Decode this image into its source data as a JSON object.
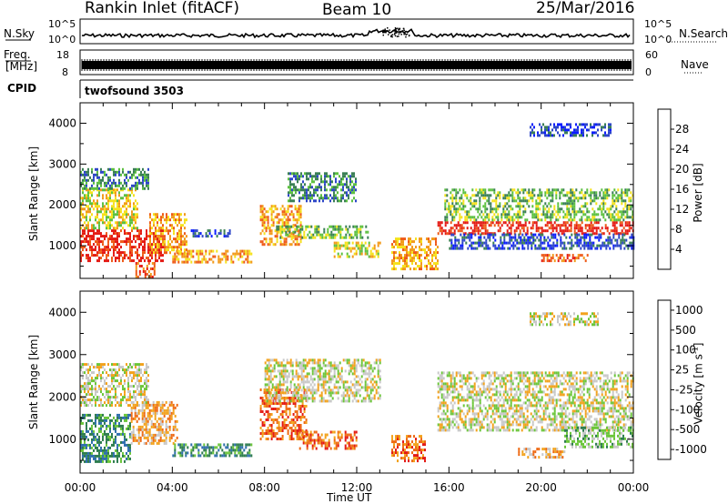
{
  "header": {
    "title": "Rankin Inlet (fitACF)",
    "beam": "Beam 10",
    "date": "25/Mar/2016"
  },
  "panels": {
    "nsky": {
      "label": "N.Sky",
      "tick_top": "10^5",
      "tick_bottom": "10^0",
      "right_label": "N.Search",
      "right_tick_top": "10^5",
      "right_tick_bottom": "10^0"
    },
    "freq": {
      "label_line1": "Freq.",
      "label_line2": "[MHz]",
      "tick_top": "18",
      "tick_bottom": "8",
      "right_label": "Nave",
      "right_tick_top": "60",
      "right_tick_bottom": "0"
    },
    "cpid": {
      "label": "CPID",
      "program": "twofsound 3503"
    }
  },
  "chart_data": [
    {
      "type": "heatmap",
      "name": "power",
      "ylabel": "Slant Range [km]",
      "xlabel": "Time UT",
      "x_ticks": [
        "00:00",
        "04:00",
        "08:00",
        "12:00",
        "16:00",
        "20:00",
        "00:00"
      ],
      "xlim": [
        0,
        24
      ],
      "y_ticks": [
        "1000",
        "2000",
        "3000",
        "4000"
      ],
      "y_tick_values": [
        1000,
        2000,
        3000,
        4000
      ],
      "ylim": [
        200,
        4500
      ],
      "colorbar": {
        "label": "Power [dB]",
        "ticks": [
          "4",
          "8",
          "12",
          "16",
          "20",
          "24",
          "28"
        ],
        "colors": [
          "#0a1cff",
          "#2d46c8",
          "#3a7f55",
          "#5cc040",
          "#f5e21c",
          "#f29a1a",
          "#ee5a18",
          "#e41a14"
        ]
      },
      "echo_regions": [
        {
          "t0": 0.0,
          "t1": 3.6,
          "r0": 600,
          "r1": 1400,
          "level": 7
        },
        {
          "t0": 0.0,
          "t1": 2.5,
          "r0": 1400,
          "r1": 2400,
          "level": 4
        },
        {
          "t0": 0.0,
          "t1": 3.0,
          "r0": 2400,
          "r1": 2900,
          "level": 2
        },
        {
          "t0": 3.0,
          "t1": 4.6,
          "r0": 800,
          "r1": 1800,
          "level": 5
        },
        {
          "t0": 2.4,
          "t1": 3.2,
          "r0": 200,
          "r1": 600,
          "level": 6
        },
        {
          "t0": 4.0,
          "t1": 7.4,
          "r0": 600,
          "r1": 900,
          "level": 5
        },
        {
          "t0": 4.8,
          "t1": 6.5,
          "r0": 1200,
          "r1": 1400,
          "level": 1
        },
        {
          "t0": 7.8,
          "t1": 9.6,
          "r0": 1000,
          "r1": 2000,
          "level": 5
        },
        {
          "t0": 8.5,
          "t1": 12.5,
          "r0": 1200,
          "r1": 1500,
          "level": 3
        },
        {
          "t0": 9.0,
          "t1": 12.0,
          "r0": 2100,
          "r1": 2800,
          "level": 2
        },
        {
          "t0": 11.0,
          "t1": 13.0,
          "r0": 700,
          "r1": 1100,
          "level": 4
        },
        {
          "t0": 13.5,
          "t1": 15.5,
          "r0": 400,
          "r1": 1200,
          "level": 5
        },
        {
          "t0": 15.5,
          "t1": 24.0,
          "r0": 1300,
          "r1": 1600,
          "level": 7
        },
        {
          "t0": 15.8,
          "t1": 24.0,
          "r0": 1600,
          "r1": 2400,
          "level": 3
        },
        {
          "t0": 16.0,
          "t1": 24.0,
          "r0": 900,
          "r1": 1300,
          "level": 1
        },
        {
          "t0": 19.5,
          "t1": 23.0,
          "r0": 3700,
          "r1": 4000,
          "level": 1
        },
        {
          "t0": 20.0,
          "t1": 22.0,
          "r0": 600,
          "r1": 800,
          "level": 6
        }
      ]
    },
    {
      "type": "heatmap",
      "name": "velocity",
      "ylabel": "Slant Range [km]",
      "xlabel": "Time UT",
      "x_ticks": [
        "00:00",
        "04:00",
        "08:00",
        "12:00",
        "16:00",
        "20:00",
        "00:00"
      ],
      "xlim": [
        0,
        24
      ],
      "y_ticks": [
        "1000",
        "2000",
        "3000",
        "4000"
      ],
      "y_tick_values": [
        1000,
        2000,
        3000,
        4000
      ],
      "ylim": [
        200,
        4500
      ],
      "colorbar": {
        "label": "Velocity [m s^-1]",
        "ticks": [
          "1000",
          "500",
          "100",
          "25",
          "-25",
          "-100",
          "-500",
          "-1000"
        ],
        "colors": [
          "#1f3fc8",
          "#2f6fae",
          "#2e7d4f",
          "#6cc63a",
          "#c8c8c8",
          "#f2a21c",
          "#ee6a14",
          "#e41a14"
        ]
      },
      "echo_regions": [
        {
          "t0": 0.0,
          "t1": 2.2,
          "r0": 500,
          "r1": 1600,
          "level": 2
        },
        {
          "t0": 0.0,
          "t1": 3.0,
          "r0": 1800,
          "r1": 2800,
          "level": 4
        },
        {
          "t0": 2.2,
          "t1": 4.2,
          "r0": 900,
          "r1": 1900,
          "level": 5
        },
        {
          "t0": 4.0,
          "t1": 7.4,
          "r0": 600,
          "r1": 900,
          "level": 2
        },
        {
          "t0": 7.8,
          "t1": 9.8,
          "r0": 1000,
          "r1": 2200,
          "level": 6
        },
        {
          "t0": 8.0,
          "t1": 13.0,
          "r0": 1900,
          "r1": 2900,
          "level": 4
        },
        {
          "t0": 9.5,
          "t1": 12.0,
          "r0": 800,
          "r1": 1200,
          "level": 6
        },
        {
          "t0": 13.5,
          "t1": 15.0,
          "r0": 500,
          "r1": 1100,
          "level": 6
        },
        {
          "t0": 15.5,
          "t1": 24.0,
          "r0": 1200,
          "r1": 2600,
          "level": 4
        },
        {
          "t0": 21.0,
          "t1": 24.0,
          "r0": 800,
          "r1": 1300,
          "level": 3
        },
        {
          "t0": 19.5,
          "t1": 22.5,
          "r0": 3700,
          "r1": 4000,
          "level": 4
        },
        {
          "t0": 19.0,
          "t1": 21.0,
          "r0": 600,
          "r1": 800,
          "level": 5
        }
      ]
    }
  ]
}
